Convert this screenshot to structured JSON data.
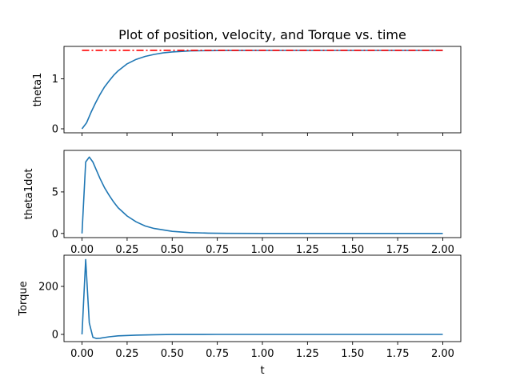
{
  "title": "Plot of position, velocity, and Torque vs. time",
  "xlabel": "t",
  "colors": {
    "series": "#1f77b4",
    "reference": "#ff0000",
    "axes": "#000000"
  },
  "chart_data": [
    {
      "type": "line",
      "title": "Plot of position, velocity, and Torque vs. time",
      "xlabel": "",
      "ylabel": "theta1",
      "xlim": [
        -0.1,
        2.1
      ],
      "ylim": [
        -0.08,
        1.65
      ],
      "xticks": [
        0.0,
        0.25,
        0.5,
        0.75,
        1.0,
        1.25,
        1.5,
        1.75,
        2.0
      ],
      "xtick_labels": [],
      "yticks": [
        0,
        1
      ],
      "ytick_labels": [
        "0",
        "1"
      ],
      "grid": false,
      "series": [
        {
          "style": "solid",
          "color": "#1f77b4",
          "x": [
            0.0,
            0.025,
            0.05,
            0.075,
            0.1,
            0.125,
            0.15,
            0.175,
            0.2,
            0.25,
            0.3,
            0.35,
            0.4,
            0.45,
            0.5,
            0.6,
            0.7,
            0.8,
            1.0,
            1.25,
            1.5,
            1.75,
            2.0
          ],
          "y": [
            0.0,
            0.12,
            0.33,
            0.52,
            0.69,
            0.84,
            0.96,
            1.07,
            1.16,
            1.3,
            1.39,
            1.45,
            1.49,
            1.52,
            1.54,
            1.56,
            1.565,
            1.568,
            1.57,
            1.57,
            1.57,
            1.57,
            1.57
          ]
        },
        {
          "style": "dashdot",
          "color": "#ff0000",
          "x": [
            0.0,
            2.0
          ],
          "y": [
            1.5708,
            1.5708
          ]
        }
      ]
    },
    {
      "type": "line",
      "title": "",
      "xlabel": "",
      "ylabel": "theta1dot",
      "xlim": [
        -0.1,
        2.1
      ],
      "ylim": [
        -0.5,
        10.0
      ],
      "xticks": [
        0.0,
        0.25,
        0.5,
        0.75,
        1.0,
        1.25,
        1.5,
        1.75,
        2.0
      ],
      "xtick_labels": [
        "0.00",
        "0.25",
        "0.50",
        "0.75",
        "1.00",
        "1.25",
        "1.50",
        "1.75",
        "2.00"
      ],
      "yticks": [
        0,
        5
      ],
      "ytick_labels": [
        "0",
        "5"
      ],
      "grid": false,
      "series": [
        {
          "style": "solid",
          "color": "#1f77b4",
          "x": [
            0.0,
            0.02,
            0.04,
            0.06,
            0.08,
            0.1,
            0.125,
            0.15,
            0.175,
            0.2,
            0.25,
            0.3,
            0.35,
            0.4,
            0.5,
            0.6,
            0.7,
            0.8,
            1.0,
            1.25,
            1.5,
            1.75,
            2.0
          ],
          "y": [
            0.0,
            8.6,
            9.2,
            8.6,
            7.6,
            6.6,
            5.5,
            4.6,
            3.8,
            3.1,
            2.1,
            1.4,
            0.9,
            0.6,
            0.25,
            0.1,
            0.04,
            0.015,
            0.0,
            0.0,
            0.0,
            0.0,
            0.0
          ]
        }
      ]
    },
    {
      "type": "line",
      "title": "",
      "xlabel": "t",
      "ylabel": "Torque",
      "xlim": [
        -0.1,
        2.1
      ],
      "ylim": [
        -30,
        330
      ],
      "xticks": [
        0.0,
        0.25,
        0.5,
        0.75,
        1.0,
        1.25,
        1.5,
        1.75,
        2.0
      ],
      "xtick_labels": [
        "0.00",
        "0.25",
        "0.50",
        "0.75",
        "1.00",
        "1.25",
        "1.50",
        "1.75",
        "2.00"
      ],
      "yticks": [
        0,
        200
      ],
      "ytick_labels": [
        "0",
        "200"
      ],
      "grid": false,
      "series": [
        {
          "style": "solid",
          "color": "#1f77b4",
          "x": [
            0.0,
            0.02,
            0.04,
            0.06,
            0.08,
            0.1,
            0.15,
            0.2,
            0.3,
            0.4,
            0.5,
            0.75,
            1.0,
            1.25,
            1.5,
            1.75,
            2.0
          ],
          "y": [
            0.0,
            312.0,
            48.0,
            -12.0,
            -17.0,
            -16.0,
            -10.0,
            -6.0,
            -3.0,
            -1.5,
            -0.5,
            0.0,
            0.0,
            0.0,
            0.0,
            0.0,
            0.0
          ]
        }
      ]
    }
  ]
}
